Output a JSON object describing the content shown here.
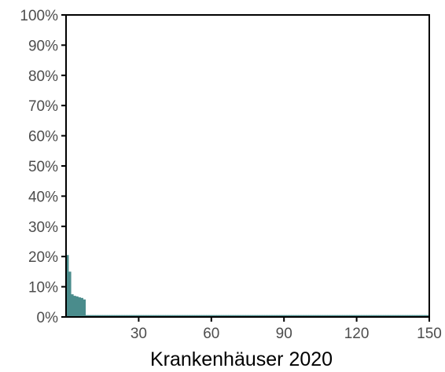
{
  "chart_data": {
    "type": "bar",
    "xlabel": "Krankenhäuser 2020",
    "ylabel": "",
    "xlim": [
      0,
      150
    ],
    "ylim": [
      0,
      100
    ],
    "x_ticks": [
      30,
      60,
      90,
      120,
      150
    ],
    "x_tick_labels": [
      "30",
      "60",
      "90",
      "120",
      "150"
    ],
    "y_ticks": [
      0,
      10,
      20,
      30,
      40,
      50,
      60,
      70,
      80,
      90,
      100
    ],
    "y_tick_labels": [
      "0%",
      "10%",
      "20%",
      "30%",
      "40%",
      "50%",
      "60%",
      "70%",
      "80%",
      "90%",
      "100%"
    ],
    "y_unit": "percent",
    "grid": false,
    "bar_color": "#4a8c8c",
    "bars": [
      {
        "x": 1,
        "value": 20.5
      },
      {
        "x": 2,
        "value": 15.0
      },
      {
        "x": 3,
        "value": 7.5
      },
      {
        "x": 4,
        "value": 7.0
      },
      {
        "x": 5,
        "value": 6.8
      },
      {
        "x": 6,
        "value": 6.5
      },
      {
        "x": 7,
        "value": 6.3
      },
      {
        "x": 8,
        "value": 5.8
      }
    ],
    "tail": {
      "from": 9,
      "to": 150,
      "value": 0.6
    }
  }
}
